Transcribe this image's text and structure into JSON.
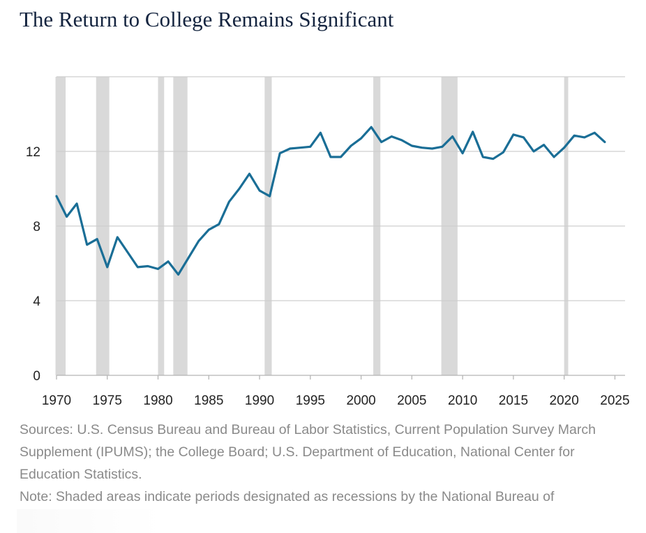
{
  "page": {
    "title": "The Return to College Remains Significant",
    "sources": "Sources: U.S. Census Bureau and Bureau of Labor Statistics, Current Population Survey March Supplement (IPUMS); the College Board; U.S. Department of Education, National Center for Education Statistics.",
    "note": "Note: Shaded areas indicate periods designated as recessions by the National Bureau of"
  },
  "chart_data": {
    "type": "line",
    "title": "The Return to College Remains Significant",
    "xlabel": "",
    "ylabel": "",
    "xlim": [
      1970,
      2026
    ],
    "ylim": [
      0,
      16
    ],
    "y_ticks": [
      0,
      4,
      8,
      12
    ],
    "x_ticks": [
      1970,
      1975,
      1980,
      1985,
      1990,
      1995,
      2000,
      2005,
      2010,
      2015,
      2020,
      2025
    ],
    "x_tick_labels": [
      "1970",
      "1975",
      "1980",
      "1985",
      "1990",
      "1995",
      "2000",
      "2005",
      "2010",
      "2015",
      "2020",
      "2025"
    ],
    "grid": "horizontal",
    "line_color": "#1a6e96",
    "recession_color": "#d9d9d9",
    "recessions": [
      [
        1969.9,
        1970.9
      ],
      [
        1973.9,
        1975.2
      ],
      [
        1980.0,
        1980.6
      ],
      [
        1981.5,
        1982.9
      ],
      [
        1990.5,
        1991.2
      ],
      [
        2001.2,
        2001.9
      ],
      [
        2007.9,
        2009.5
      ],
      [
        2020.0,
        2020.4
      ]
    ],
    "series": [
      {
        "values": [
          [
            1970,
            9.6
          ],
          [
            1971,
            8.5
          ],
          [
            1972,
            9.2
          ],
          [
            1973,
            7.0
          ],
          [
            1974,
            7.3
          ],
          [
            1975,
            5.8
          ],
          [
            1976,
            7.4
          ],
          [
            1977,
            6.6
          ],
          [
            1978,
            5.8
          ],
          [
            1979,
            5.85
          ],
          [
            1980,
            5.7
          ],
          [
            1981,
            6.1
          ],
          [
            1982,
            5.4
          ],
          [
            1983,
            6.3
          ],
          [
            1984,
            7.2
          ],
          [
            1985,
            7.8
          ],
          [
            1986,
            8.1
          ],
          [
            1987,
            9.3
          ],
          [
            1988,
            10.0
          ],
          [
            1989,
            10.8
          ],
          [
            1990,
            9.9
          ],
          [
            1991,
            9.6
          ],
          [
            1992,
            11.9
          ],
          [
            1993,
            12.15
          ],
          [
            1994,
            12.2
          ],
          [
            1995,
            12.25
          ],
          [
            1996,
            13.0
          ],
          [
            1997,
            11.7
          ],
          [
            1998,
            11.7
          ],
          [
            1999,
            12.3
          ],
          [
            2000,
            12.7
          ],
          [
            2001,
            13.3
          ],
          [
            2002,
            12.5
          ],
          [
            2003,
            12.8
          ],
          [
            2004,
            12.6
          ],
          [
            2005,
            12.3
          ],
          [
            2006,
            12.2
          ],
          [
            2007,
            12.15
          ],
          [
            2008,
            12.25
          ],
          [
            2009,
            12.8
          ],
          [
            2010,
            11.9
          ],
          [
            2011,
            13.05
          ],
          [
            2012,
            11.7
          ],
          [
            2013,
            11.6
          ],
          [
            2014,
            11.95
          ],
          [
            2015,
            12.9
          ],
          [
            2016,
            12.75
          ],
          [
            2017,
            12.0
          ],
          [
            2018,
            12.35
          ],
          [
            2019,
            11.7
          ],
          [
            2020,
            12.2
          ],
          [
            2021,
            12.85
          ],
          [
            2022,
            12.75
          ],
          [
            2023,
            13.0
          ],
          [
            2024,
            12.5
          ]
        ]
      }
    ]
  }
}
